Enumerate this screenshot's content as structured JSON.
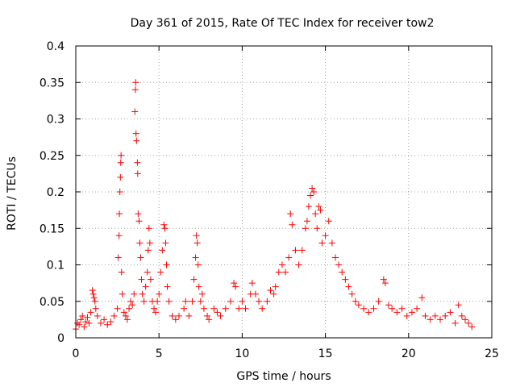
{
  "chart_data": {
    "type": "scatter",
    "title": "Day 361 of 2015, Rate Of TEC Index for receiver tow2",
    "xlabel": "GPS time / hours",
    "ylabel": "ROTI / TECUs",
    "xlim": [
      0,
      25
    ],
    "ylim": [
      0,
      0.4
    ],
    "xticks": [
      0,
      5,
      10,
      15,
      20,
      25
    ],
    "xtick_labels": [
      "0",
      "5",
      "10",
      "15",
      "20",
      "25"
    ],
    "yticks": [
      0,
      0.05,
      0.1,
      0.15,
      0.2,
      0.25,
      0.3,
      0.35,
      0.4
    ],
    "ytick_labels": [
      "0",
      "0.05",
      "0.1",
      "0.15",
      "0.2",
      "0.25",
      "0.3",
      "0.35",
      "0.4"
    ],
    "grid": true,
    "marker": "+",
    "color": "#ff0000",
    "series": [
      {
        "name": "ROTI",
        "points": [
          [
            0.0,
            0.012
          ],
          [
            0.1,
            0.02
          ],
          [
            0.2,
            0.018
          ],
          [
            0.3,
            0.025
          ],
          [
            0.4,
            0.03
          ],
          [
            0.5,
            0.015
          ],
          [
            0.6,
            0.022
          ],
          [
            0.7,
            0.028
          ],
          [
            0.8,
            0.02
          ],
          [
            0.9,
            0.035
          ],
          [
            1.0,
            0.065
          ],
          [
            1.05,
            0.06
          ],
          [
            1.1,
            0.055
          ],
          [
            1.15,
            0.05
          ],
          [
            1.2,
            0.04
          ],
          [
            1.3,
            0.03
          ],
          [
            1.5,
            0.02
          ],
          [
            1.7,
            0.025
          ],
          [
            1.9,
            0.018
          ],
          [
            2.1,
            0.022
          ],
          [
            2.3,
            0.03
          ],
          [
            2.5,
            0.04
          ],
          [
            2.55,
            0.11
          ],
          [
            2.6,
            0.14
          ],
          [
            2.62,
            0.17
          ],
          [
            2.65,
            0.2
          ],
          [
            2.68,
            0.22
          ],
          [
            2.7,
            0.24
          ],
          [
            2.72,
            0.25
          ],
          [
            2.75,
            0.09
          ],
          [
            2.8,
            0.06
          ],
          [
            2.9,
            0.035
          ],
          [
            3.0,
            0.03
          ],
          [
            3.1,
            0.025
          ],
          [
            3.2,
            0.04
          ],
          [
            3.3,
            0.05
          ],
          [
            3.4,
            0.045
          ],
          [
            3.5,
            0.06
          ],
          [
            3.55,
            0.31
          ],
          [
            3.58,
            0.34
          ],
          [
            3.6,
            0.35
          ],
          [
            3.62,
            0.28
          ],
          [
            3.65,
            0.27
          ],
          [
            3.7,
            0.24
          ],
          [
            3.72,
            0.225
          ],
          [
            3.75,
            0.17
          ],
          [
            3.8,
            0.16
          ],
          [
            3.85,
            0.13
          ],
          [
            3.9,
            0.11
          ],
          [
            3.95,
            0.08
          ],
          [
            4.0,
            0.06
          ],
          [
            4.1,
            0.05
          ],
          [
            4.2,
            0.07
          ],
          [
            4.3,
            0.09
          ],
          [
            4.35,
            0.12
          ],
          [
            4.4,
            0.15
          ],
          [
            4.45,
            0.13
          ],
          [
            4.5,
            0.08
          ],
          [
            4.6,
            0.05
          ],
          [
            4.7,
            0.04
          ],
          [
            4.8,
            0.035
          ],
          [
            4.9,
            0.05
          ],
          [
            5.0,
            0.06
          ],
          [
            5.1,
            0.09
          ],
          [
            5.2,
            0.12
          ],
          [
            5.3,
            0.155
          ],
          [
            5.35,
            0.15
          ],
          [
            5.4,
            0.13
          ],
          [
            5.45,
            0.1
          ],
          [
            5.5,
            0.07
          ],
          [
            5.6,
            0.05
          ],
          [
            5.8,
            0.03
          ],
          [
            6.0,
            0.025
          ],
          [
            6.2,
            0.03
          ],
          [
            6.5,
            0.04
          ],
          [
            6.6,
            0.05
          ],
          [
            6.8,
            0.03
          ],
          [
            7.0,
            0.05
          ],
          [
            7.1,
            0.08
          ],
          [
            7.2,
            0.11
          ],
          [
            7.25,
            0.14
          ],
          [
            7.3,
            0.13
          ],
          [
            7.35,
            0.1
          ],
          [
            7.4,
            0.07
          ],
          [
            7.5,
            0.05
          ],
          [
            7.6,
            0.06
          ],
          [
            7.7,
            0.04
          ],
          [
            7.9,
            0.03
          ],
          [
            8.0,
            0.025
          ],
          [
            8.3,
            0.04
          ],
          [
            8.5,
            0.035
          ],
          [
            8.7,
            0.03
          ],
          [
            9.0,
            0.04
          ],
          [
            9.3,
            0.05
          ],
          [
            9.5,
            0.075
          ],
          [
            9.6,
            0.07
          ],
          [
            9.8,
            0.04
          ],
          [
            10.0,
            0.05
          ],
          [
            10.2,
            0.04
          ],
          [
            10.5,
            0.06
          ],
          [
            10.6,
            0.075
          ],
          [
            10.8,
            0.06
          ],
          [
            11.0,
            0.05
          ],
          [
            11.2,
            0.04
          ],
          [
            11.5,
            0.05
          ],
          [
            11.7,
            0.065
          ],
          [
            11.9,
            0.06
          ],
          [
            12.0,
            0.07
          ],
          [
            12.2,
            0.09
          ],
          [
            12.4,
            0.1
          ],
          [
            12.6,
            0.09
          ],
          [
            12.8,
            0.11
          ],
          [
            12.9,
            0.17
          ],
          [
            13.0,
            0.155
          ],
          [
            13.2,
            0.12
          ],
          [
            13.4,
            0.1
          ],
          [
            13.6,
            0.12
          ],
          [
            13.8,
            0.15
          ],
          [
            13.9,
            0.16
          ],
          [
            14.0,
            0.18
          ],
          [
            14.1,
            0.195
          ],
          [
            14.2,
            0.205
          ],
          [
            14.3,
            0.2
          ],
          [
            14.4,
            0.17
          ],
          [
            14.5,
            0.15
          ],
          [
            14.6,
            0.18
          ],
          [
            14.7,
            0.175
          ],
          [
            14.8,
            0.13
          ],
          [
            15.0,
            0.14
          ],
          [
            15.2,
            0.16
          ],
          [
            15.4,
            0.13
          ],
          [
            15.6,
            0.11
          ],
          [
            15.8,
            0.1
          ],
          [
            16.0,
            0.09
          ],
          [
            16.2,
            0.08
          ],
          [
            16.4,
            0.07
          ],
          [
            16.6,
            0.06
          ],
          [
            16.8,
            0.05
          ],
          [
            17.0,
            0.045
          ],
          [
            17.3,
            0.04
          ],
          [
            17.6,
            0.035
          ],
          [
            17.9,
            0.04
          ],
          [
            18.2,
            0.05
          ],
          [
            18.5,
            0.08
          ],
          [
            18.6,
            0.075
          ],
          [
            18.8,
            0.045
          ],
          [
            19.0,
            0.04
          ],
          [
            19.3,
            0.035
          ],
          [
            19.6,
            0.04
          ],
          [
            19.9,
            0.03
          ],
          [
            20.2,
            0.035
          ],
          [
            20.5,
            0.04
          ],
          [
            20.8,
            0.055
          ],
          [
            21.0,
            0.03
          ],
          [
            21.3,
            0.025
          ],
          [
            21.6,
            0.03
          ],
          [
            21.9,
            0.025
          ],
          [
            22.2,
            0.03
          ],
          [
            22.5,
            0.035
          ],
          [
            22.8,
            0.02
          ],
          [
            23.0,
            0.045
          ],
          [
            23.2,
            0.03
          ],
          [
            23.4,
            0.025
          ],
          [
            23.6,
            0.02
          ],
          [
            23.8,
            0.015
          ]
        ]
      }
    ]
  }
}
